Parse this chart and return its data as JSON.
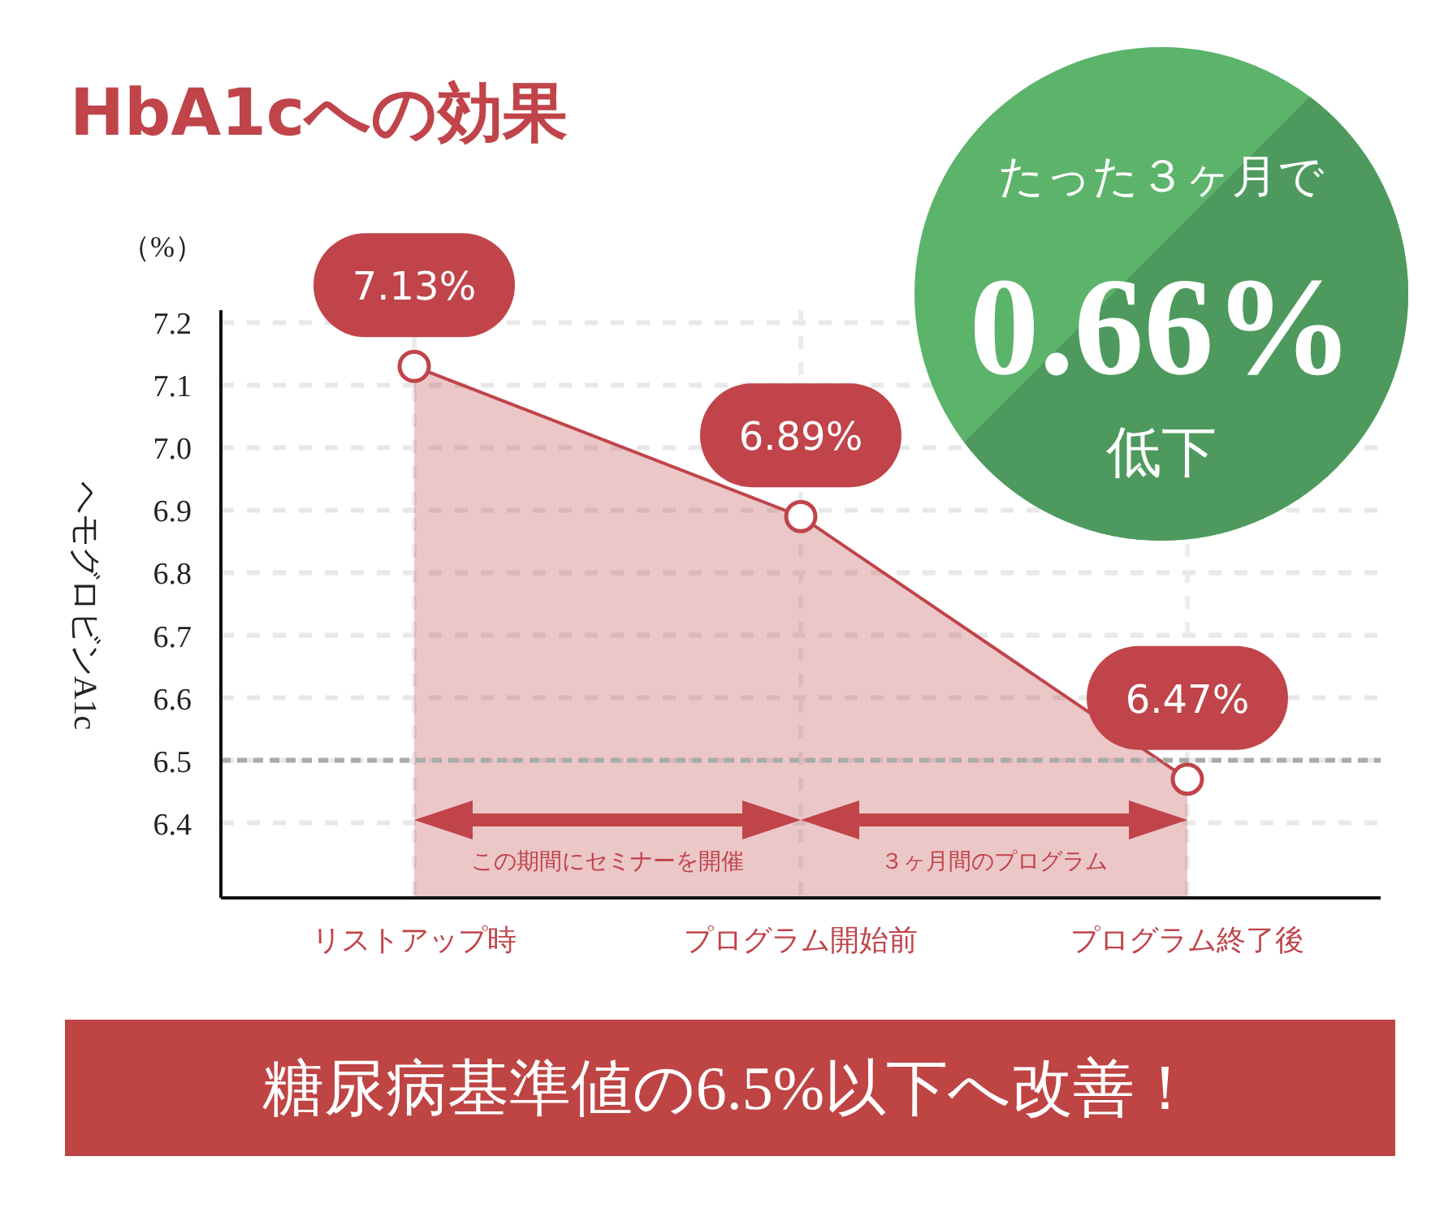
{
  "chart_data": {
    "type": "area",
    "title": "HbA1cへの効果",
    "ylabel": "ヘモグロビンA1c",
    "categories": [
      "リストアップ時",
      "プログラム開始前",
      "プログラム終了後"
    ],
    "series": [
      {
        "color": "#c0444a",
        "values": [
          7.13,
          6.89,
          6.47
        ],
        "value_labels": [
          "7.13%",
          "6.89%",
          "6.47%"
        ]
      }
    ],
    "ylim": [
      6.28,
      7.22
    ],
    "yticks": [
      6.4,
      6.5,
      6.6,
      6.7,
      6.8,
      6.9,
      {
        "value": 7,
        "label": "7.0"
      },
      7.1,
      7.2
    ],
    "grid": true,
    "marker": "circle",
    "line_style": "solid",
    "ref_lines": [
      {
        "axis": "y",
        "value": 6.5,
        "color": "#aaaaaa",
        "line_style": "dashed"
      }
    ],
    "annotations": [
      "（%）",
      "この期間にセミナーを開催",
      "３ヶ月間のプログラム",
      "たった３ヶ月で",
      "0.66%",
      "低下",
      "糖尿病基準値の6.5%以下へ改善！"
    ]
  }
}
